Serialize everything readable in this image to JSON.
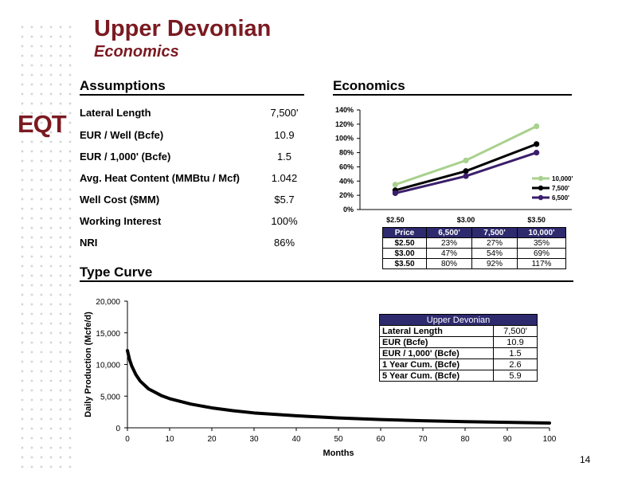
{
  "header": {
    "title": "Upper Devonian",
    "subtitle": "Economics",
    "logo": "EQT"
  },
  "sections": {
    "assumptions": "Assumptions",
    "economics": "Economics",
    "type_curve": "Type Curve"
  },
  "assumptions": [
    {
      "label": "Lateral Length",
      "value": "7,500'"
    },
    {
      "label": "EUR / Well (Bcfe)",
      "value": "10.9"
    },
    {
      "label": "EUR / 1,000' (Bcfe)",
      "value": "1.5"
    },
    {
      "label": "Avg. Heat Content (MMBtu / Mcf)",
      "value": "1.042"
    },
    {
      "label": "Well Cost ($MM)",
      "value": "$5.7"
    },
    {
      "label": "Working Interest",
      "value": "100%"
    },
    {
      "label": "NRI",
      "value": "86%"
    }
  ],
  "econ_table": {
    "headers": [
      "Price",
      "6,500'",
      "7,500'",
      "10,000'"
    ],
    "rows": [
      [
        "$2.50",
        "23%",
        "27%",
        "35%"
      ],
      [
        "$3.00",
        "47%",
        "54%",
        "69%"
      ],
      [
        "$3.50",
        "80%",
        "92%",
        "117%"
      ]
    ]
  },
  "type_curve_table": {
    "title": "Upper Devonian",
    "rows": [
      {
        "label": "Lateral Length",
        "value": "7,500'"
      },
      {
        "label": "EUR (Bcfe)",
        "value": "10.9"
      },
      {
        "label": "EUR / 1,000' (Bcfe)",
        "value": "1.5"
      },
      {
        "label": "1 Year Cum. (Bcfe)",
        "value": "2.6"
      },
      {
        "label": "5 Year Cum. (Bcfe)",
        "value": "5.9"
      }
    ]
  },
  "page_number": "14",
  "chart_data": [
    {
      "type": "line",
      "categories": [
        "$2.50",
        "$3.00",
        "$3.50"
      ],
      "series": [
        {
          "name": "10,000'",
          "values": [
            35,
            69,
            117
          ],
          "color": "#a9d18e"
        },
        {
          "name": "7,500'",
          "values": [
            27,
            54,
            92
          ],
          "color": "#000000"
        },
        {
          "name": "6,500'",
          "values": [
            23,
            47,
            80
          ],
          "color": "#3b1e6b"
        }
      ],
      "ylim": [
        0,
        140
      ],
      "yticks": [
        "0%",
        "20%",
        "40%",
        "60%",
        "80%",
        "100%",
        "120%",
        "140%"
      ],
      "legend": "right",
      "grid": false
    },
    {
      "type": "line",
      "xlabel": "Months",
      "ylabel": "Daily Production (Mcfe/d)",
      "xlim": [
        0,
        100
      ],
      "ylim": [
        0,
        20000
      ],
      "xticks": [
        "0",
        "10",
        "20",
        "30",
        "40",
        "50",
        "60",
        "70",
        "80",
        "90",
        "100"
      ],
      "yticks": [
        "0",
        "5,000",
        "10,000",
        "15,000",
        "20,000"
      ],
      "series": [
        {
          "name": "",
          "x": [
            0,
            0.5,
            1,
            2,
            3,
            5,
            8,
            10,
            15,
            20,
            25,
            30,
            40,
            50,
            60,
            70,
            80,
            90,
            100
          ],
          "values": [
            12200,
            10800,
            9800,
            8400,
            7400,
            6150,
            5100,
            4600,
            3750,
            3150,
            2700,
            2350,
            1900,
            1550,
            1300,
            1120,
            980,
            860,
            760
          ]
        }
      ]
    }
  ]
}
